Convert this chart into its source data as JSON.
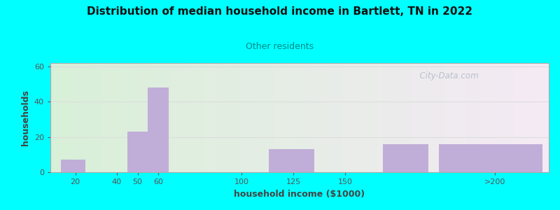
{
  "title": "Distribution of median household income in Bartlett, TN in 2022",
  "subtitle": "Other residents",
  "xlabel": "household income ($1000)",
  "ylabel": "households",
  "background_color": "#00FFFF",
  "plot_bg_gradient_left": "#d8f0d8",
  "plot_bg_gradient_right": "#f5eaf5",
  "bar_color": "#c0aed8",
  "title_color": "#111111",
  "subtitle_color": "#008888",
  "axis_label_color": "#444444",
  "tick_label_color": "#555555",
  "grid_color": "#dddddd",
  "watermark": "  City-Data.com",
  "bar_lefts": [
    13,
    45,
    55,
    113,
    168,
    195
  ],
  "bar_heights": [
    7,
    23,
    48,
    13,
    16,
    16
  ],
  "bar_widths": [
    12,
    10,
    10,
    22,
    22,
    50
  ],
  "xtick_positions": [
    20,
    40,
    50,
    60,
    100,
    125,
    150,
    222
  ],
  "xtick_labels": [
    "20",
    "40",
    "50",
    "60",
    "100",
    "125",
    "150",
    ">200"
  ],
  "ytick_positions": [
    0,
    20,
    40,
    60
  ],
  "ylim": [
    0,
    62
  ],
  "xlim": [
    8,
    248
  ]
}
